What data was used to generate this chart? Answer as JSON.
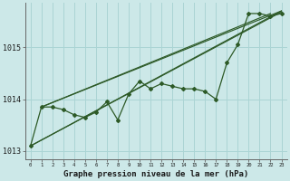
{
  "xlabel": "Graphe pression niveau de la mer (hPa)",
  "bg_color": "#cce8e8",
  "grid_color": "#aad4d4",
  "line_color": "#2d5a27",
  "xlim": [
    -0.5,
    23.5
  ],
  "ylim": [
    1012.85,
    1015.85
  ],
  "yticks": [
    1013,
    1014,
    1015
  ],
  "xticks": [
    0,
    1,
    2,
    3,
    4,
    5,
    6,
    7,
    8,
    9,
    10,
    11,
    12,
    13,
    14,
    15,
    16,
    17,
    18,
    19,
    20,
    21,
    22,
    23
  ],
  "hours": [
    0,
    1,
    2,
    3,
    4,
    5,
    6,
    7,
    8,
    9,
    10,
    11,
    12,
    13,
    14,
    15,
    16,
    17,
    18,
    19,
    20,
    21,
    22,
    23
  ],
  "pressure_main": [
    1013.1,
    1013.85,
    1013.85,
    1013.8,
    1013.7,
    1013.65,
    1013.75,
    1013.95,
    1013.6,
    1014.1,
    1014.35,
    1014.2,
    1014.3,
    1014.25,
    1014.2,
    1014.2,
    1014.15,
    1014.0,
    1014.7,
    1015.05,
    1015.65,
    1015.65,
    1015.6,
    1015.65
  ],
  "trend_line": {
    "x": [
      0,
      23
    ],
    "y": [
      1013.1,
      1015.7
    ]
  },
  "upper_line1": {
    "x": [
      1,
      23
    ],
    "y": [
      1013.85,
      1015.7
    ]
  },
  "upper_line2": {
    "x": [
      1,
      22
    ],
    "y": [
      1013.85,
      1015.65
    ]
  },
  "lower_line1": {
    "x": [
      0,
      23
    ],
    "y": [
      1013.1,
      1015.68
    ]
  },
  "lower_line2": {
    "x": [
      0,
      21
    ],
    "y": [
      1013.1,
      1015.65
    ]
  }
}
